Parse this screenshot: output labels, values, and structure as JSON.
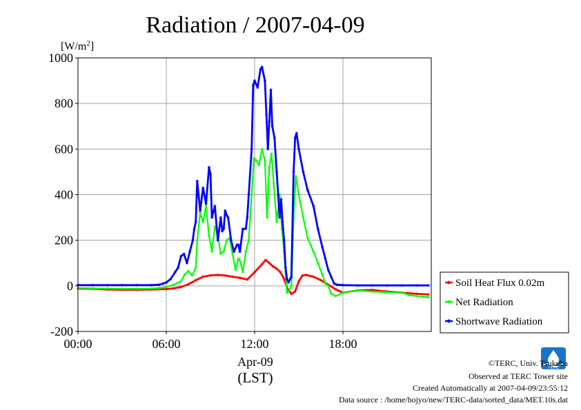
{
  "chart_data": {
    "type": "line",
    "title": "Radiation / 2007-04-09",
    "ylabel": "[W/m",
    "ylabel_sup": "2",
    "ylabel_close": "]",
    "ylim": [
      -200,
      1000
    ],
    "xlim": [
      0,
      24
    ],
    "yticks": [
      -200,
      0,
      200,
      400,
      600,
      800,
      1000
    ],
    "ytick_labels": [
      "-200",
      "0",
      "200",
      "400",
      "600",
      "800",
      "1000"
    ],
    "xticks": [
      0,
      6,
      12,
      18
    ],
    "xtick_labels": [
      "00:00",
      "06:00",
      "12:00",
      "18:00"
    ],
    "xlabel_date": "Apr-09",
    "xlabel_unit": "(LST)",
    "grid": true,
    "legend_position": "bottom-right outside",
    "series": [
      {
        "name": "Soil Heat Flux 0.02m",
        "color": "#ff0000",
        "x": [
          0,
          1,
          2,
          3,
          4,
          5,
          6,
          6.5,
          7,
          7.5,
          8,
          8.5,
          9,
          9.5,
          10,
          10.5,
          11,
          11.5,
          12,
          12.5,
          12.75,
          13,
          13.25,
          13.5,
          13.75,
          14,
          14.25,
          14.5,
          14.75,
          15,
          15.25,
          15.5,
          16,
          16.5,
          17,
          17.5,
          18,
          19,
          20,
          21,
          22,
          23,
          23.8
        ],
        "values": [
          -12,
          -13,
          -16,
          -17,
          -17,
          -16,
          -14,
          -11,
          -5,
          7,
          25,
          40,
          46,
          48,
          45,
          40,
          35,
          28,
          60,
          95,
          113,
          100,
          85,
          75,
          60,
          30,
          -15,
          -35,
          -25,
          20,
          45,
          48,
          40,
          25,
          5,
          -15,
          -30,
          -20,
          -18,
          -25,
          -30,
          -35,
          -38
        ]
      },
      {
        "name": "Net Radiation",
        "color": "#00ff00",
        "x": [
          0,
          1,
          2,
          3,
          4,
          5,
          5.5,
          6,
          6.5,
          7,
          7.25,
          7.5,
          7.75,
          8,
          8.1,
          8.3,
          8.5,
          8.7,
          8.9,
          9.1,
          9.3,
          9.5,
          9.7,
          9.9,
          10.1,
          10.3,
          10.5,
          10.7,
          10.9,
          11,
          11.2,
          11.4,
          11.6,
          11.8,
          11.95,
          12.1,
          12.3,
          12.5,
          12.7,
          12.85,
          13,
          13.15,
          13.3,
          13.5,
          13.7,
          13.85,
          14,
          14.1,
          14.2,
          14.35,
          14.5,
          14.65,
          14.8,
          15,
          15.3,
          15.6,
          16,
          16.3,
          16.6,
          16.8,
          17,
          17.2,
          17.5,
          18,
          19,
          20,
          21,
          22,
          22.5,
          23,
          23.8
        ],
        "values": [
          -10,
          -11,
          -12,
          -13,
          -13,
          -12,
          -10,
          -5,
          5,
          20,
          50,
          65,
          45,
          80,
          200,
          320,
          280,
          350,
          220,
          150,
          260,
          220,
          140,
          150,
          200,
          210,
          140,
          70,
          120,
          110,
          60,
          150,
          200,
          400,
          560,
          550,
          530,
          600,
          550,
          300,
          520,
          580,
          450,
          280,
          400,
          250,
          150,
          60,
          -30,
          -20,
          0,
          300,
          480,
          400,
          300,
          210,
          150,
          100,
          50,
          10,
          0,
          -35,
          -45,
          -30,
          -20,
          -25,
          -28,
          -30,
          -40,
          -45,
          -50
        ]
      },
      {
        "name": "Shortwave Radiation",
        "color": "#0000ff",
        "x": [
          0,
          1,
          2,
          3,
          4,
          5,
          5.5,
          5.8,
          6,
          6.3,
          6.6,
          6.8,
          7,
          7.2,
          7.4,
          7.6,
          7.8,
          7.9,
          8,
          8.1,
          8.3,
          8.5,
          8.7,
          8.9,
          9,
          9.1,
          9.3,
          9.5,
          9.7,
          9.8,
          9.9,
          10,
          10.1,
          10.2,
          10.4,
          10.6,
          10.8,
          10.9,
          11,
          11.2,
          11.4,
          11.5,
          11.6,
          11.8,
          11.9,
          12,
          12.2,
          12.4,
          12.5,
          12.7,
          12.8,
          12.9,
          13,
          13.1,
          13.2,
          13.35,
          13.5,
          13.6,
          13.7,
          13.8,
          13.9,
          14,
          14.1,
          14.2,
          14.3,
          14.5,
          14.65,
          14.75,
          14.85,
          15,
          15.3,
          15.6,
          16,
          16.3,
          16.6,
          16.8,
          17,
          17.2,
          17.4,
          17.6,
          18,
          19,
          20,
          21,
          22,
          23,
          23.8
        ],
        "values": [
          3,
          3,
          3,
          3,
          3,
          3,
          5,
          10,
          15,
          30,
          60,
          80,
          130,
          140,
          100,
          150,
          200,
          250,
          280,
          460,
          330,
          430,
          360,
          520,
          490,
          300,
          350,
          200,
          300,
          240,
          250,
          330,
          310,
          300,
          200,
          150,
          180,
          180,
          150,
          250,
          250,
          300,
          400,
          600,
          880,
          900,
          870,
          950,
          960,
          900,
          750,
          600,
          720,
          860,
          700,
          650,
          500,
          400,
          300,
          380,
          280,
          200,
          80,
          30,
          15,
          40,
          500,
          650,
          670,
          600,
          500,
          420,
          350,
          250,
          170,
          120,
          70,
          40,
          10,
          5,
          3,
          2,
          2,
          2,
          2,
          2,
          2
        ]
      }
    ]
  },
  "credits": {
    "copyright": "©TERC, Univ. Tsukuba",
    "observed": "Observed at TERC Tower site",
    "created": "Created Automatically at 2007-04-09/23:55:12",
    "source": "Data source : /home/hojyo/new/TERC-data/sorted_data/MET.10s.dat",
    "logo_text": "TERC"
  }
}
